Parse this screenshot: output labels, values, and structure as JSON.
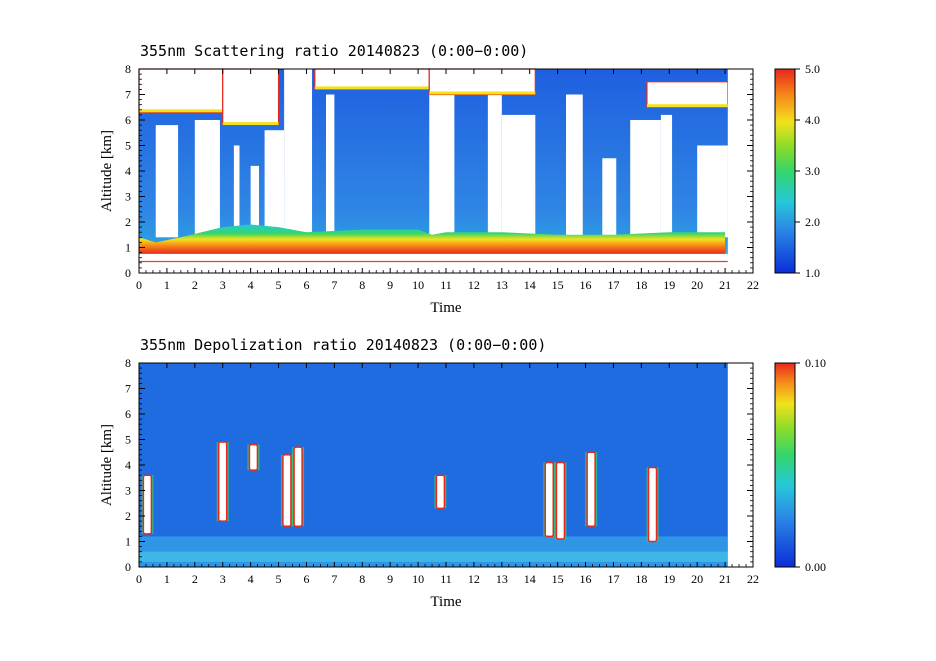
{
  "chart_data": [
    {
      "type": "heatmap",
      "title": "355nm Scattering ratio  20140823 (0:00−0:00)",
      "xlabel": "Time",
      "ylabel": "Altitude [km]",
      "xlim": [
        0,
        22
      ],
      "ylim": [
        0,
        8
      ],
      "x_ticks": [
        "0",
        "1",
        "2",
        "3",
        "4",
        "5",
        "6",
        "7",
        "8",
        "9",
        "10",
        "11",
        "12",
        "13",
        "14",
        "15",
        "16",
        "17",
        "18",
        "19",
        "20",
        "21",
        "22"
      ],
      "y_ticks": [
        "0",
        "1",
        "2",
        "3",
        "4",
        "5",
        "6",
        "7",
        "8"
      ],
      "colorbar": {
        "range": [
          1.0,
          5.0
        ],
        "tick_labels": [
          "1.0",
          "2.0",
          "3.0",
          "4.0",
          "5.0"
        ],
        "tick_values": [
          1.0,
          2.0,
          3.0,
          4.0,
          5.0
        ]
      },
      "data_end_time": 21.1,
      "boundary_layer_top_km": [
        [
          0,
          0.9
        ],
        [
          0.6,
          0.7
        ],
        [
          1.5,
          0.9
        ],
        [
          3,
          1.3
        ],
        [
          4,
          1.4
        ],
        [
          5,
          1.3
        ],
        [
          6,
          1.1
        ],
        [
          8,
          1.2
        ],
        [
          10,
          1.2
        ],
        [
          10.5,
          1.0
        ],
        [
          11,
          1.1
        ],
        [
          13,
          1.1
        ],
        [
          15,
          1.0
        ],
        [
          17,
          1.0
        ],
        [
          19,
          1.1
        ],
        [
          21,
          1.1
        ]
      ],
      "cloud_layers": [
        {
          "t0": 0.0,
          "t1": 3.0,
          "base_km": 6.3,
          "top_km": 8.0
        },
        {
          "t0": 3.0,
          "t1": 5.0,
          "base_km": 5.8,
          "top_km": 8.0
        },
        {
          "t0": 6.3,
          "t1": 10.4,
          "base_km": 7.2,
          "top_km": 8.0
        },
        {
          "t0": 10.4,
          "t1": 14.2,
          "base_km": 7.0,
          "top_km": 8.0
        },
        {
          "t0": 18.2,
          "t1": 21.1,
          "base_km": 6.5,
          "top_km": 7.5
        }
      ]
    },
    {
      "type": "heatmap",
      "title": "355nm Depolization ratio  20140823 (0:00−0:00)",
      "xlabel": "Time",
      "ylabel": "Altitude [km]",
      "xlim": [
        0,
        22
      ],
      "ylim": [
        0,
        8
      ],
      "x_ticks": [
        "0",
        "1",
        "2",
        "3",
        "4",
        "5",
        "6",
        "7",
        "8",
        "9",
        "10",
        "11",
        "12",
        "13",
        "14",
        "15",
        "16",
        "17",
        "18",
        "19",
        "20",
        "21",
        "22"
      ],
      "y_ticks": [
        "0",
        "1",
        "2",
        "3",
        "4",
        "5",
        "6",
        "7",
        "8"
      ],
      "colorbar": {
        "range": [
          0.0,
          0.1
        ],
        "tick_labels": [
          "0.00",
          "0.10"
        ],
        "tick_values": [
          0.0,
          0.1
        ]
      },
      "data_end_time": 21.1,
      "high_depol_columns": [
        {
          "t": 0.3,
          "base_km": 1.3,
          "top_km": 3.6
        },
        {
          "t": 3.0,
          "base_km": 1.8,
          "top_km": 4.9
        },
        {
          "t": 4.1,
          "base_km": 3.8,
          "top_km": 4.8
        },
        {
          "t": 5.3,
          "base_km": 1.6,
          "top_km": 4.4
        },
        {
          "t": 5.7,
          "base_km": 1.6,
          "top_km": 4.7
        },
        {
          "t": 10.8,
          "base_km": 2.3,
          "top_km": 3.6
        },
        {
          "t": 14.7,
          "base_km": 1.2,
          "top_km": 4.1
        },
        {
          "t": 15.1,
          "base_km": 1.1,
          "top_km": 4.1
        },
        {
          "t": 16.2,
          "base_km": 1.6,
          "top_km": 4.5
        },
        {
          "t": 18.4,
          "base_km": 1.0,
          "top_km": 3.9
        }
      ]
    }
  ]
}
